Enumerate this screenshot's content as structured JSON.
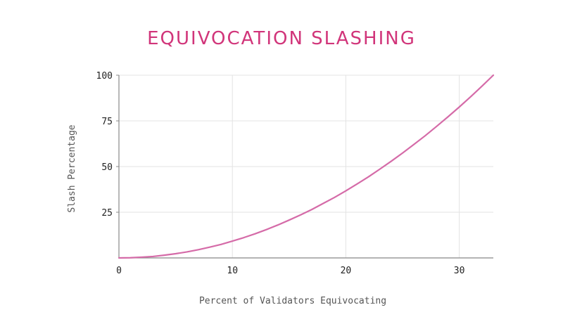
{
  "chart_data": {
    "type": "line",
    "title": "EQUIVOCATION SLASHING",
    "xlabel": "Percent of Validators Equivocating",
    "ylabel": "Slash Percentage",
    "xlim": [
      0,
      33
    ],
    "ylim": [
      0,
      100
    ],
    "x_ticks": [
      0,
      10,
      20,
      30
    ],
    "y_ticks": [
      25,
      50,
      75,
      100
    ],
    "grid": true,
    "series": [
      {
        "color": "#d56ba8",
        "x": [
          0,
          1,
          2,
          3,
          4,
          5,
          6,
          7,
          8,
          9,
          10,
          11,
          12,
          13,
          14,
          15,
          16,
          17,
          18,
          19,
          20,
          21,
          22,
          23,
          24,
          25,
          26,
          27,
          28,
          29,
          30,
          31,
          32,
          33
        ],
        "y": [
          0,
          0.1,
          0.4,
          0.8,
          1.5,
          2.3,
          3.3,
          4.5,
          5.9,
          7.4,
          9.2,
          11.1,
          13.2,
          15.5,
          18.0,
          20.7,
          23.5,
          26.5,
          29.8,
          33.1,
          36.7,
          40.5,
          44.4,
          48.6,
          52.9,
          57.4,
          62.1,
          66.9,
          72.0,
          77.2,
          82.6,
          88.2,
          94.0,
          100
        ]
      }
    ]
  }
}
